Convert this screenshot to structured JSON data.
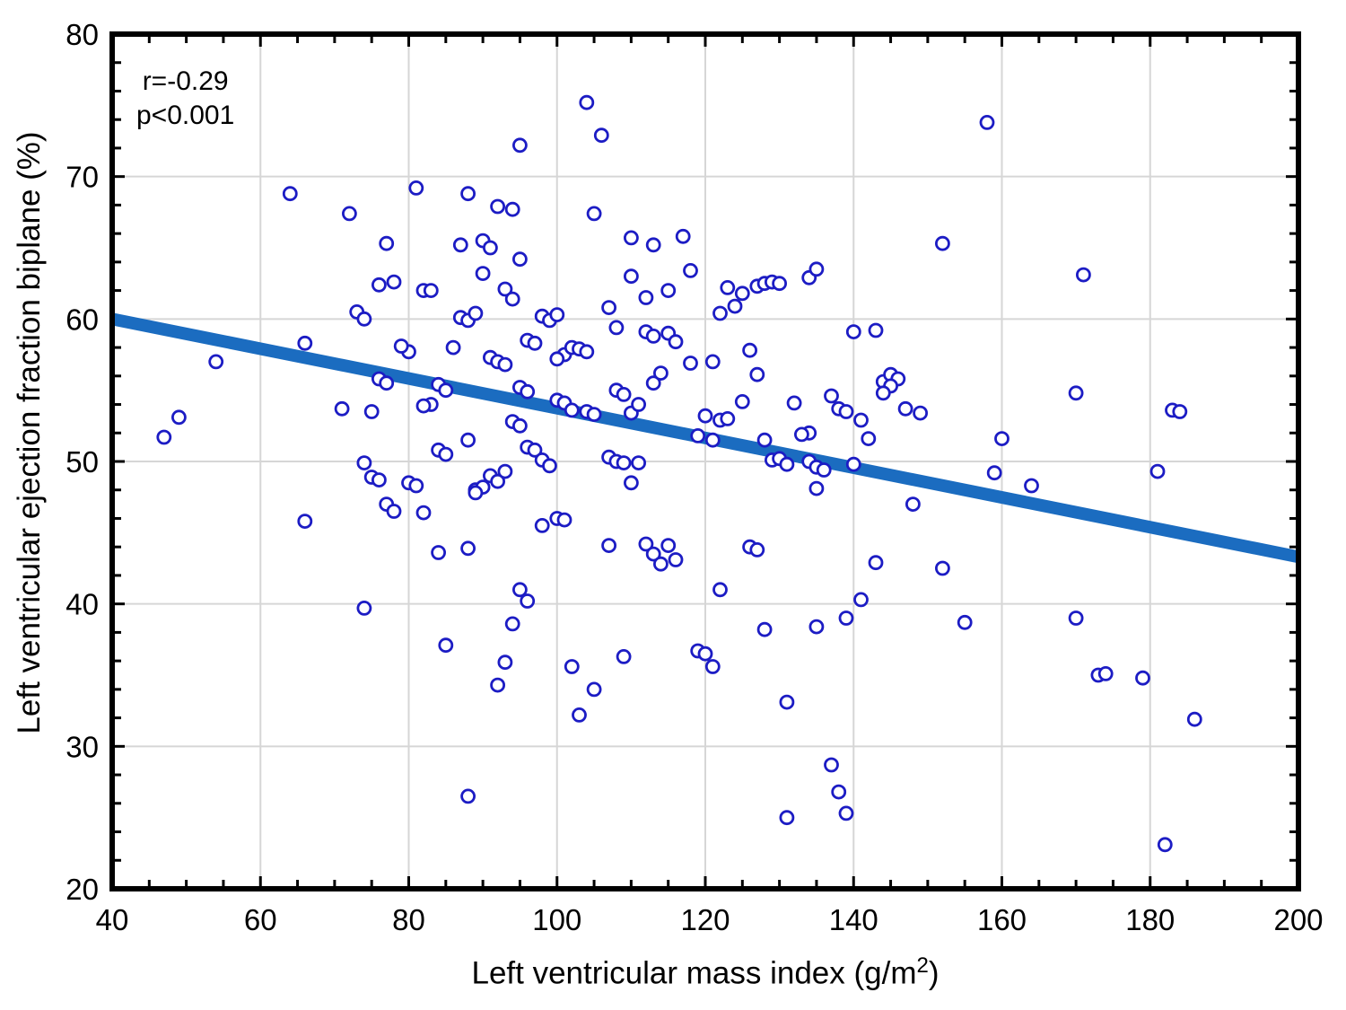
{
  "chart_data": {
    "type": "scatter",
    "title": "",
    "xlabel": "Left ventricular mass index (g/m²)",
    "xlabel_parts": {
      "pre": "Left ventricular mass index (g/m",
      "sup": "2",
      "post": ")"
    },
    "ylabel": "Left ventricular ejection fraction biplane (%)",
    "annotation": {
      "line1": "r=-0.29",
      "line2": "p<0.001"
    },
    "xlim": [
      40,
      200
    ],
    "ylim": [
      20,
      80
    ],
    "x_ticks": [
      40,
      60,
      80,
      100,
      120,
      140,
      160,
      180,
      200
    ],
    "y_ticks": [
      20,
      30,
      40,
      50,
      60,
      70,
      80
    ],
    "x_minor_step": 5,
    "y_minor_step": 2,
    "grid": true,
    "legend": "none",
    "regression_line": {
      "x1": 40,
      "y1": 60.0,
      "x2": 200,
      "y2": 43.3
    },
    "colors": {
      "point_stroke": "#1c1cc4",
      "point_fill": "#ffffff",
      "line": "#1b6cc0",
      "grid": "#d6d6d6",
      "frame": "#000000",
      "text": "#000000"
    },
    "points": [
      [
        104,
        75.2
      ],
      [
        106,
        72.9
      ],
      [
        95,
        72.2
      ],
      [
        158,
        73.8
      ],
      [
        64,
        68.8
      ],
      [
        81,
        69.2
      ],
      [
        88,
        68.8
      ],
      [
        72,
        67.4
      ],
      [
        92,
        67.9
      ],
      [
        94,
        67.7
      ],
      [
        105,
        67.4
      ],
      [
        110,
        65.7
      ],
      [
        117,
        65.8
      ],
      [
        113,
        65.2
      ],
      [
        87,
        65.2
      ],
      [
        90,
        65.5
      ],
      [
        91,
        65.0
      ],
      [
        77,
        65.3
      ],
      [
        95,
        64.2
      ],
      [
        152,
        65.3
      ],
      [
        118,
        63.4
      ],
      [
        110,
        63.0
      ],
      [
        78,
        62.6
      ],
      [
        76,
        62.4
      ],
      [
        82,
        62.0
      ],
      [
        83,
        62.0
      ],
      [
        90,
        63.2
      ],
      [
        93,
        62.1
      ],
      [
        115,
        62.0
      ],
      [
        123,
        62.2
      ],
      [
        125,
        61.8
      ],
      [
        127,
        62.3
      ],
      [
        128,
        62.5
      ],
      [
        129,
        62.6
      ],
      [
        130,
        62.5
      ],
      [
        134,
        62.9
      ],
      [
        135,
        63.5
      ],
      [
        171,
        63.1
      ],
      [
        73,
        60.5
      ],
      [
        74,
        60.0
      ],
      [
        87,
        60.1
      ],
      [
        88,
        59.9
      ],
      [
        89,
        60.4
      ],
      [
        94,
        61.4
      ],
      [
        98,
        60.2
      ],
      [
        99,
        59.9
      ],
      [
        100,
        60.3
      ],
      [
        107,
        60.8
      ],
      [
        112,
        61.5
      ],
      [
        124,
        60.9
      ],
      [
        122,
        60.4
      ],
      [
        66,
        58.3
      ],
      [
        86,
        58.0
      ],
      [
        96,
        58.5
      ],
      [
        97,
        58.3
      ],
      [
        101,
        57.5
      ],
      [
        102,
        58.0
      ],
      [
        103,
        57.9
      ],
      [
        104,
        57.7
      ],
      [
        108,
        59.4
      ],
      [
        112,
        59.1
      ],
      [
        113,
        58.8
      ],
      [
        115,
        59.0
      ],
      [
        116,
        58.4
      ],
      [
        126,
        57.8
      ],
      [
        140,
        59.1
      ],
      [
        143,
        59.2
      ],
      [
        80,
        57.7
      ],
      [
        79,
        58.1
      ],
      [
        54,
        57.0
      ],
      [
        91,
        57.3
      ],
      [
        92,
        57.0
      ],
      [
        93,
        56.8
      ],
      [
        100,
        57.2
      ],
      [
        121,
        57.0
      ],
      [
        127,
        56.1
      ],
      [
        144,
        55.6
      ],
      [
        145,
        56.1
      ],
      [
        146,
        55.8
      ],
      [
        145,
        55.3
      ],
      [
        113,
        55.5
      ],
      [
        114,
        56.2
      ],
      [
        118,
        56.9
      ],
      [
        76,
        55.8
      ],
      [
        77,
        55.5
      ],
      [
        84,
        55.4
      ],
      [
        85,
        55.0
      ],
      [
        95,
        55.2
      ],
      [
        96,
        54.9
      ],
      [
        100,
        54.3
      ],
      [
        101,
        54.1
      ],
      [
        104,
        53.5
      ],
      [
        105,
        53.3
      ],
      [
        108,
        55.0
      ],
      [
        109,
        54.7
      ],
      [
        125,
        54.2
      ],
      [
        132,
        54.1
      ],
      [
        137,
        54.6
      ],
      [
        144,
        54.8
      ],
      [
        170,
        54.8
      ],
      [
        183,
        53.6
      ],
      [
        102,
        53.6
      ],
      [
        110,
        53.4
      ],
      [
        111,
        54.0
      ],
      [
        147,
        53.7
      ],
      [
        149,
        53.4
      ],
      [
        71,
        53.7
      ],
      [
        75,
        53.5
      ],
      [
        83,
        54.0
      ],
      [
        49,
        53.1
      ],
      [
        120,
        53.2
      ],
      [
        122,
        52.9
      ],
      [
        123,
        53.0
      ],
      [
        138,
        53.7
      ],
      [
        139,
        53.5
      ],
      [
        141,
        52.9
      ],
      [
        94,
        52.8
      ],
      [
        95,
        52.5
      ],
      [
        82,
        53.9
      ],
      [
        134,
        52.0
      ],
      [
        133,
        51.9
      ],
      [
        142,
        51.6
      ],
      [
        160,
        51.6
      ],
      [
        184,
        53.5
      ],
      [
        47,
        51.7
      ],
      [
        84,
        50.8
      ],
      [
        85,
        50.5
      ],
      [
        88,
        51.5
      ],
      [
        96,
        51.0
      ],
      [
        97,
        50.8
      ],
      [
        98,
        50.1
      ],
      [
        107,
        50.3
      ],
      [
        108,
        50.0
      ],
      [
        109,
        49.9
      ],
      [
        111,
        49.9
      ],
      [
        119,
        51.8
      ],
      [
        121,
        51.5
      ],
      [
        128,
        51.5
      ],
      [
        129,
        50.1
      ],
      [
        130,
        50.2
      ],
      [
        131,
        49.8
      ],
      [
        134,
        50.0
      ],
      [
        135,
        49.6
      ],
      [
        136,
        49.4
      ],
      [
        140,
        49.8
      ],
      [
        74,
        49.9
      ],
      [
        99,
        49.7
      ],
      [
        181,
        49.3
      ],
      [
        159,
        49.2
      ],
      [
        75,
        48.9
      ],
      [
        76,
        48.7
      ],
      [
        80,
        48.5
      ],
      [
        81,
        48.3
      ],
      [
        89,
        48.0
      ],
      [
        90,
        48.2
      ],
      [
        91,
        49.0
      ],
      [
        92,
        48.6
      ],
      [
        93,
        49.3
      ],
      [
        110,
        48.5
      ],
      [
        135,
        48.1
      ],
      [
        164,
        48.3
      ],
      [
        89,
        47.8
      ],
      [
        77,
        47.0
      ],
      [
        78,
        46.5
      ],
      [
        100,
        46.0
      ],
      [
        101,
        45.9
      ],
      [
        148,
        47.0
      ],
      [
        82,
        46.4
      ],
      [
        66,
        45.8
      ],
      [
        84,
        43.6
      ],
      [
        88,
        43.9
      ],
      [
        98,
        45.5
      ],
      [
        107,
        44.1
      ],
      [
        112,
        44.2
      ],
      [
        113,
        43.5
      ],
      [
        114,
        42.8
      ],
      [
        115,
        44.1
      ],
      [
        116,
        43.1
      ],
      [
        126,
        44.0
      ],
      [
        127,
        43.8
      ],
      [
        143,
        42.9
      ],
      [
        152,
        42.5
      ],
      [
        95,
        41.0
      ],
      [
        96,
        40.2
      ],
      [
        122,
        41.0
      ],
      [
        141,
        40.3
      ],
      [
        139,
        39.0
      ],
      [
        170,
        39.0
      ],
      [
        155,
        38.7
      ],
      [
        94,
        38.6
      ],
      [
        128,
        38.2
      ],
      [
        135,
        38.4
      ],
      [
        74,
        39.7
      ],
      [
        85,
        37.1
      ],
      [
        92,
        34.3
      ],
      [
        93,
        35.9
      ],
      [
        102,
        35.6
      ],
      [
        105,
        34.0
      ],
      [
        109,
        36.3
      ],
      [
        119,
        36.7
      ],
      [
        120,
        36.5
      ],
      [
        121,
        35.6
      ],
      [
        173,
        35.0
      ],
      [
        174,
        35.1
      ],
      [
        179,
        34.8
      ],
      [
        131,
        33.1
      ],
      [
        186,
        31.9
      ],
      [
        103,
        32.2
      ],
      [
        88,
        26.5
      ],
      [
        131,
        25.0
      ],
      [
        137,
        28.7
      ],
      [
        138,
        26.8
      ],
      [
        139,
        25.3
      ],
      [
        182,
        23.1
      ]
    ]
  }
}
